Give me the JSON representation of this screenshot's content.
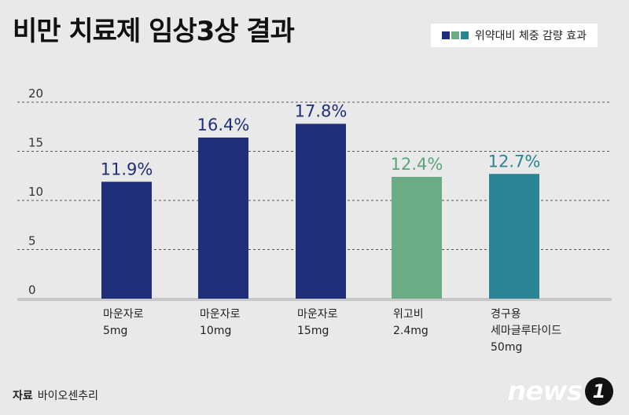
{
  "header": {
    "title": "비만 치료제 임상3상 결과"
  },
  "legend": {
    "label": "위약대비 체중 감량 효과",
    "colors": [
      "#1f2f7a",
      "#6aac86",
      "#2a8494"
    ]
  },
  "footer": {
    "source_label": "자료",
    "source_value": "바이오센추리",
    "logo_text": "news",
    "logo_badge": "1"
  },
  "chart_data": {
    "type": "bar",
    "title": "비만 치료제 임상3상 결과",
    "ylim": [
      0,
      20
    ],
    "yticks": [
      "0",
      "5",
      "10",
      "15",
      "20"
    ],
    "grid": true,
    "legend_position": "top-right",
    "categories": [
      {
        "lines": [
          "마운자로",
          "5mg"
        ]
      },
      {
        "lines": [
          "마운자로",
          "10mg"
        ]
      },
      {
        "lines": [
          "마운자로",
          "15mg"
        ]
      },
      {
        "lines": [
          "위고비",
          "2.4mg"
        ]
      },
      {
        "lines": [
          "경구용",
          "세마글루타이드",
          "50mg"
        ]
      }
    ],
    "values": [
      11.9,
      16.4,
      17.8,
      12.4,
      12.7
    ],
    "value_labels": [
      "11.9%",
      "16.4%",
      "17.8%",
      "12.4%",
      "12.7%"
    ],
    "colors": [
      "#1f2f7a",
      "#1f2f7a",
      "#1f2f7a",
      "#6aac86",
      "#2a8494"
    ],
    "label_colors": [
      "#1f2f7a",
      "#1f2f7a",
      "#1f2f7a",
      "#5aa57a",
      "#2a8494"
    ]
  }
}
